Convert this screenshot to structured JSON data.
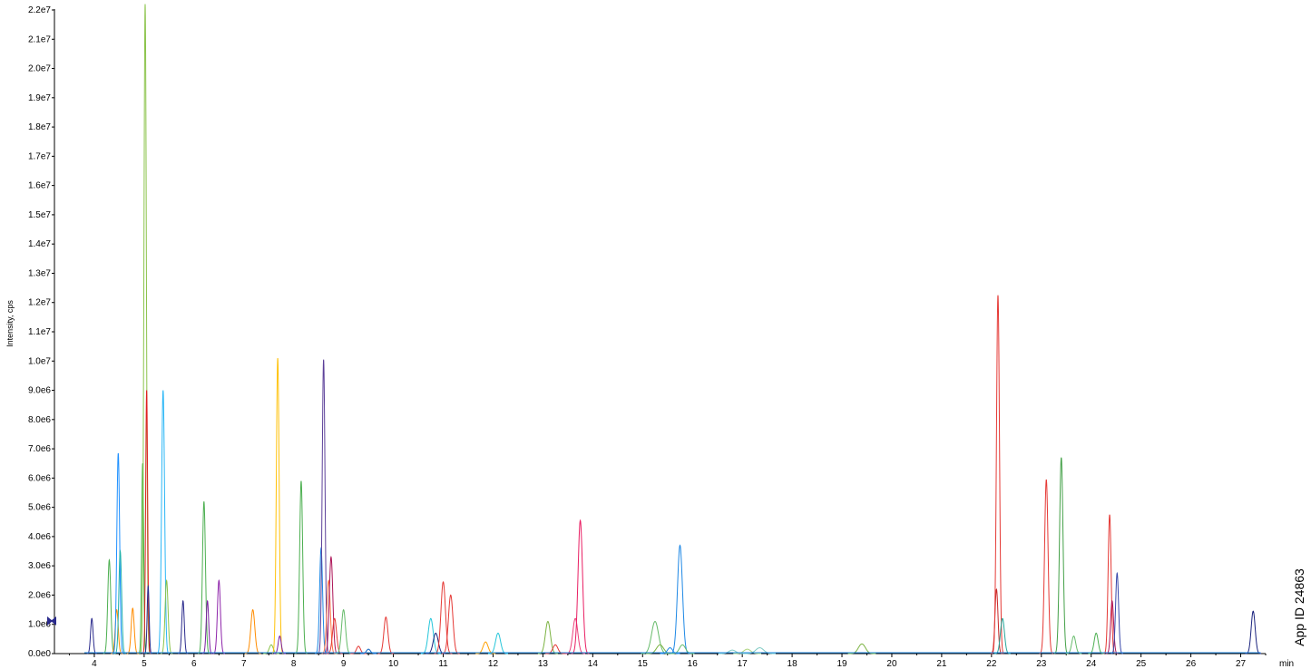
{
  "chart_data": {
    "type": "line",
    "ylabel": "Intensity, cps",
    "x_unit_label": "min",
    "app_id": "App ID 24863",
    "xlim": [
      3.2,
      27.5
    ],
    "ylim": [
      0,
      22000000
    ],
    "x_ticks": [
      4,
      5,
      6,
      7,
      8,
      9,
      10,
      11,
      12,
      13,
      14,
      15,
      16,
      17,
      18,
      19,
      20,
      21,
      22,
      23,
      24,
      25,
      26,
      27
    ],
    "y_ticks": [
      {
        "value": 0,
        "label": "0.0e0"
      },
      {
        "value": 1000000,
        "label": "1.0e6"
      },
      {
        "value": 2000000,
        "label": "2.0e6"
      },
      {
        "value": 3000000,
        "label": "3.0e6"
      },
      {
        "value": 4000000,
        "label": "4.0e6"
      },
      {
        "value": 5000000,
        "label": "5.0e6"
      },
      {
        "value": 6000000,
        "label": "6.0e6"
      },
      {
        "value": 7000000,
        "label": "7.0e6"
      },
      {
        "value": 8000000,
        "label": "8.0e6"
      },
      {
        "value": 9000000,
        "label": "9.0e6"
      },
      {
        "value": 10000000,
        "label": "1.0e7"
      },
      {
        "value": 11000000,
        "label": "1.1e7"
      },
      {
        "value": 12000000,
        "label": "1.2e7"
      },
      {
        "value": 13000000,
        "label": "1.3e7"
      },
      {
        "value": 14000000,
        "label": "1.4e7"
      },
      {
        "value": 15000000,
        "label": "1.5e7"
      },
      {
        "value": 16000000,
        "label": "1.6e7"
      },
      {
        "value": 17000000,
        "label": "1.7e7"
      },
      {
        "value": 18000000,
        "label": "1.8e7"
      },
      {
        "value": 19000000,
        "label": "1.9e7"
      },
      {
        "value": 20000000,
        "label": "2.0e7"
      },
      {
        "value": 21000000,
        "label": "2.1e7"
      },
      {
        "value": 22000000,
        "label": "2.2e7"
      }
    ],
    "grid": false,
    "peaks": [
      {
        "x": 3.95,
        "y": 1200000,
        "w": 0.025,
        "color": "#2a2a8c"
      },
      {
        "x": 4.3,
        "y": 3200000,
        "w": 0.03,
        "color": "#4caf50"
      },
      {
        "x": 4.45,
        "y": 1500000,
        "w": 0.03,
        "color": "#ff8c00"
      },
      {
        "x": 4.48,
        "y": 6850000,
        "w": 0.028,
        "color": "#1e90ff"
      },
      {
        "x": 4.52,
        "y": 3500000,
        "w": 0.028,
        "color": "#20b2aa"
      },
      {
        "x": 4.77,
        "y": 1550000,
        "w": 0.03,
        "color": "#ff8c00"
      },
      {
        "x": 4.97,
        "y": 6500000,
        "w": 0.02,
        "color": "#3cb043"
      },
      {
        "x": 5.02,
        "y": 22200000,
        "w": 0.025,
        "color": "#8bc34a"
      },
      {
        "x": 5.05,
        "y": 9000000,
        "w": 0.02,
        "color": "#e02020"
      },
      {
        "x": 5.08,
        "y": 2300000,
        "w": 0.02,
        "color": "#2a2a8c"
      },
      {
        "x": 5.38,
        "y": 9000000,
        "w": 0.03,
        "color": "#29b6f6"
      },
      {
        "x": 5.45,
        "y": 2500000,
        "w": 0.03,
        "color": "#8bc34a"
      },
      {
        "x": 5.78,
        "y": 1800000,
        "w": 0.025,
        "color": "#2a2a8c"
      },
      {
        "x": 6.2,
        "y": 5200000,
        "w": 0.03,
        "color": "#4caf50"
      },
      {
        "x": 6.27,
        "y": 1800000,
        "w": 0.025,
        "color": "#7b1fa2"
      },
      {
        "x": 6.5,
        "y": 2500000,
        "w": 0.03,
        "color": "#8e24aa"
      },
      {
        "x": 7.18,
        "y": 1500000,
        "w": 0.04,
        "color": "#ff8c00"
      },
      {
        "x": 7.55,
        "y": 300000,
        "w": 0.04,
        "color": "#8bc34a"
      },
      {
        "x": 7.68,
        "y": 10100000,
        "w": 0.028,
        "color": "#ffc107"
      },
      {
        "x": 7.72,
        "y": 600000,
        "w": 0.03,
        "color": "#7b1fa2"
      },
      {
        "x": 8.15,
        "y": 5900000,
        "w": 0.03,
        "color": "#4caf50"
      },
      {
        "x": 8.55,
        "y": 3600000,
        "w": 0.03,
        "color": "#1e88e5"
      },
      {
        "x": 8.6,
        "y": 10050000,
        "w": 0.028,
        "color": "#5c4099"
      },
      {
        "x": 8.7,
        "y": 2500000,
        "w": 0.035,
        "color": "#ff7043"
      },
      {
        "x": 8.75,
        "y": 3300000,
        "w": 0.035,
        "color": "#ad1457"
      },
      {
        "x": 8.82,
        "y": 1200000,
        "w": 0.04,
        "color": "#e53935"
      },
      {
        "x": 9.0,
        "y": 1500000,
        "w": 0.04,
        "color": "#66bb6a"
      },
      {
        "x": 9.3,
        "y": 250000,
        "w": 0.04,
        "color": "#e53935"
      },
      {
        "x": 9.5,
        "y": 150000,
        "w": 0.04,
        "color": "#1565c0"
      },
      {
        "x": 9.85,
        "y": 1250000,
        "w": 0.04,
        "color": "#e53935"
      },
      {
        "x": 10.75,
        "y": 1200000,
        "w": 0.05,
        "color": "#26c6da"
      },
      {
        "x": 10.85,
        "y": 700000,
        "w": 0.05,
        "color": "#1a237e"
      },
      {
        "x": 11.0,
        "y": 2450000,
        "w": 0.045,
        "color": "#e53935"
      },
      {
        "x": 11.15,
        "y": 2000000,
        "w": 0.045,
        "color": "#e53935"
      },
      {
        "x": 11.85,
        "y": 400000,
        "w": 0.05,
        "color": "#ffa000"
      },
      {
        "x": 12.1,
        "y": 700000,
        "w": 0.05,
        "color": "#26c6da"
      },
      {
        "x": 13.1,
        "y": 1100000,
        "w": 0.05,
        "color": "#7cb342"
      },
      {
        "x": 13.25,
        "y": 300000,
        "w": 0.05,
        "color": "#e53935"
      },
      {
        "x": 13.65,
        "y": 1200000,
        "w": 0.05,
        "color": "#ec407a"
      },
      {
        "x": 13.75,
        "y": 4550000,
        "w": 0.045,
        "color": "#e91e63"
      },
      {
        "x": 15.25,
        "y": 1100000,
        "w": 0.07,
        "color": "#66bb6a"
      },
      {
        "x": 15.35,
        "y": 300000,
        "w": 0.07,
        "color": "#7cb342"
      },
      {
        "x": 15.55,
        "y": 200000,
        "w": 0.05,
        "color": "#1e88e5"
      },
      {
        "x": 15.75,
        "y": 3700000,
        "w": 0.05,
        "color": "#1e88e5"
      },
      {
        "x": 15.8,
        "y": 300000,
        "w": 0.06,
        "color": "#66bb6a"
      },
      {
        "x": 16.8,
        "y": 120000,
        "w": 0.07,
        "color": "#80cbc4"
      },
      {
        "x": 17.1,
        "y": 150000,
        "w": 0.07,
        "color": "#aed581"
      },
      {
        "x": 17.35,
        "y": 200000,
        "w": 0.08,
        "color": "#80cbc4"
      },
      {
        "x": 19.4,
        "y": 330000,
        "w": 0.07,
        "color": "#7cb342"
      },
      {
        "x": 22.1,
        "y": 2200000,
        "w": 0.03,
        "color": "#c62828"
      },
      {
        "x": 22.13,
        "y": 12250000,
        "w": 0.03,
        "color": "#e53935"
      },
      {
        "x": 22.22,
        "y": 1200000,
        "w": 0.04,
        "color": "#26a69a"
      },
      {
        "x": 23.1,
        "y": 5950000,
        "w": 0.035,
        "color": "#e53935"
      },
      {
        "x": 23.4,
        "y": 6700000,
        "w": 0.035,
        "color": "#43a047"
      },
      {
        "x": 23.65,
        "y": 600000,
        "w": 0.04,
        "color": "#66bb6a"
      },
      {
        "x": 24.1,
        "y": 700000,
        "w": 0.04,
        "color": "#4caf50"
      },
      {
        "x": 24.37,
        "y": 4750000,
        "w": 0.03,
        "color": "#e53935"
      },
      {
        "x": 24.42,
        "y": 1800000,
        "w": 0.03,
        "color": "#ad1457"
      },
      {
        "x": 24.52,
        "y": 2750000,
        "w": 0.03,
        "color": "#3949ab"
      },
      {
        "x": 27.25,
        "y": 1450000,
        "w": 0.04,
        "color": "#1a237e"
      }
    ]
  }
}
